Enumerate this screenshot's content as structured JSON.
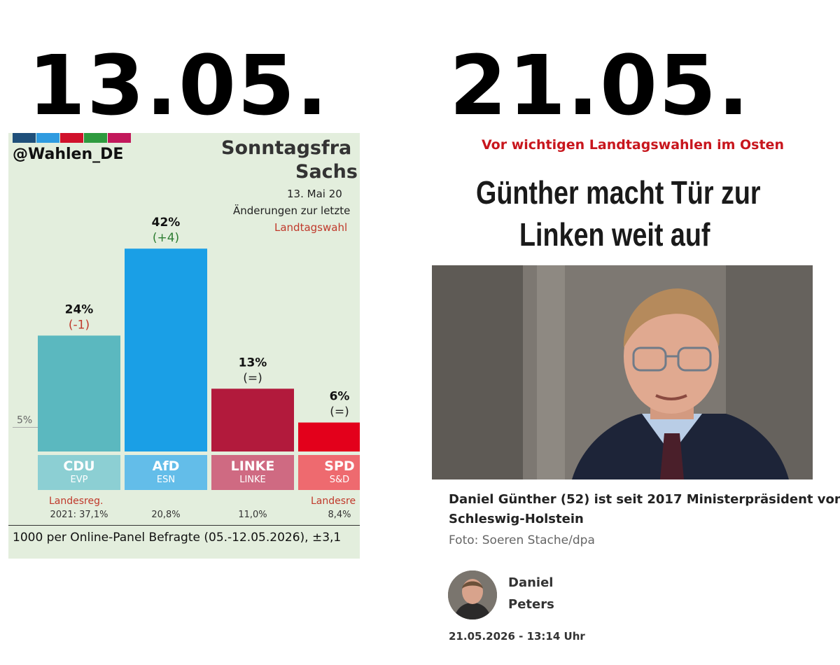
{
  "dates": {
    "left": "13.05.",
    "right": "21.05."
  },
  "poll": {
    "handle": "@Wahlen_DE",
    "title": "Sonntagsfra",
    "region": "Sachs",
    "date": "13. Mai 20",
    "changes_label": "Änderungen zur letzte",
    "reference": "Landtagswahl",
    "threshold_label": "5%",
    "footer": "1000 per Online-Panel Befragte (05.-12.05.2026), ±3,1",
    "stripe_colors": [
      "#1f4f7a",
      "#2f9be0",
      "#d0112b",
      "#2e9a3e",
      "#c2185b"
    ]
  },
  "chart_data": {
    "type": "bar",
    "categories": [
      "CDU",
      "AfD",
      "LINKE",
      "SPD"
    ],
    "values": [
      24,
      42,
      13,
      6
    ],
    "value_labels": [
      "24%",
      "42%",
      "13%",
      "6%"
    ],
    "change_labels": [
      "(-1)",
      "(+4)",
      "(=)",
      "(=)"
    ],
    "change_colors": [
      "#c0392b",
      "#2e7d32",
      "#222222",
      "#222222"
    ],
    "groups": [
      "EVP",
      "ESN",
      "LINKE",
      "S&D"
    ],
    "bar_colors": [
      "#5bb8bf",
      "#1a9fe6",
      "#b21a3c",
      "#e3001b"
    ],
    "box_colors": [
      "#8ccfd3",
      "#63bde9",
      "#cf6a82",
      "#ee6a6f"
    ],
    "government_labels": [
      "Landesreg.",
      "",
      "",
      "Landesre"
    ],
    "previous_results": [
      "2021: 37,1%",
      "20,8%",
      "11,0%",
      "8,4%"
    ],
    "threshold": 5,
    "ylim": [
      0,
      42
    ]
  },
  "article": {
    "kicker": "Vor wichtigen Landtagswahlen im Osten",
    "headline_line1": "Günther macht Tür zur",
    "headline_line2": "Linken weit auf",
    "caption_line1": "Daniel Günther (52) ist seit 2017 Ministerpräsident von",
    "caption_line2": "Schleswig-Holstein",
    "credit": "Foto: Soeren Stache/dpa",
    "author_first": "Daniel",
    "author_last": "Peters",
    "timestamp": "21.05.2026 - 13:14 Uhr"
  }
}
